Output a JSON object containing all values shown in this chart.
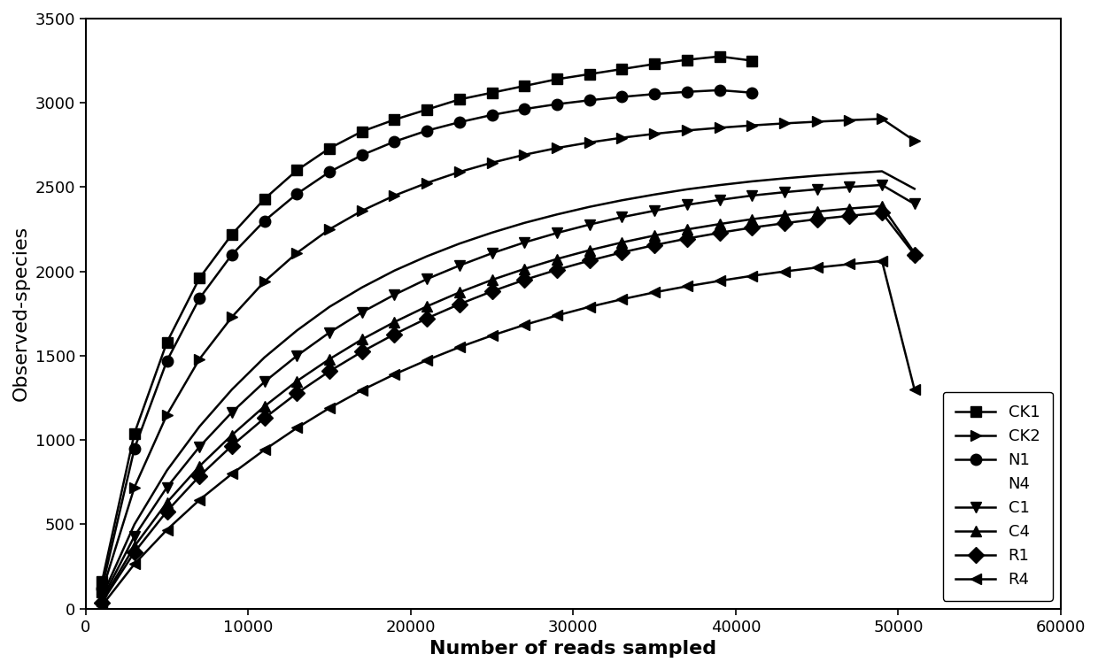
{
  "title": "",
  "xlabel": "Number of reads sampled",
  "ylabel": "Observed-species",
  "xlim": [
    0,
    60000
  ],
  "ylim": [
    0,
    3500
  ],
  "xticks": [
    0,
    10000,
    20000,
    30000,
    40000,
    50000,
    60000
  ],
  "yticks": [
    0,
    500,
    1000,
    1500,
    2000,
    2500,
    3000,
    3500
  ],
  "series": [
    {
      "name": "CK1",
      "marker": "s",
      "x": [
        1000,
        3000,
        5000,
        7000,
        9000,
        11000,
        13000,
        15000,
        17000,
        19000,
        21000,
        23000,
        25000,
        27000,
        29000,
        31000,
        33000,
        35000,
        37000,
        39000,
        41000
      ],
      "y": [
        160,
        1040,
        1580,
        1960,
        2220,
        2430,
        2600,
        2730,
        2830,
        2900,
        2960,
        3020,
        3060,
        3100,
        3140,
        3170,
        3200,
        3230,
        3255,
        3275,
        3250
      ]
    },
    {
      "name": "CK2",
      "marker": ">",
      "x": [
        1000,
        3000,
        5000,
        7000,
        9000,
        11000,
        13000,
        15000,
        17000,
        19000,
        21000,
        23000,
        25000,
        27000,
        29000,
        31000,
        33000,
        35000,
        37000,
        39000,
        41000,
        43000,
        45000,
        47000,
        49000,
        51000
      ],
      "y": [
        100,
        720,
        1150,
        1480,
        1730,
        1940,
        2110,
        2250,
        2360,
        2450,
        2525,
        2590,
        2645,
        2692,
        2732,
        2765,
        2793,
        2816,
        2836,
        2852,
        2866,
        2878,
        2888,
        2897,
        2905,
        2775
      ]
    },
    {
      "name": "N1",
      "marker": "o",
      "x": [
        1000,
        3000,
        5000,
        7000,
        9000,
        11000,
        13000,
        15000,
        17000,
        19000,
        21000,
        23000,
        25000,
        27000,
        29000,
        31000,
        33000,
        35000,
        37000,
        39000,
        41000
      ],
      "y": [
        120,
        950,
        1470,
        1840,
        2100,
        2300,
        2460,
        2590,
        2690,
        2770,
        2835,
        2885,
        2928,
        2963,
        2992,
        3015,
        3035,
        3052,
        3065,
        3075,
        3060
      ]
    },
    {
      "name": "N4",
      "marker": "None",
      "x": [
        1000,
        3000,
        5000,
        7000,
        9000,
        11000,
        13000,
        15000,
        17000,
        19000,
        21000,
        23000,
        25000,
        27000,
        29000,
        31000,
        33000,
        35000,
        37000,
        39000,
        41000,
        43000,
        45000,
        47000,
        49000,
        51000
      ],
      "y": [
        70,
        500,
        820,
        1080,
        1300,
        1490,
        1650,
        1790,
        1905,
        2005,
        2090,
        2165,
        2230,
        2288,
        2338,
        2383,
        2422,
        2456,
        2487,
        2512,
        2534,
        2552,
        2568,
        2582,
        2594,
        2490
      ]
    },
    {
      "name": "C1",
      "marker": "v",
      "x": [
        1000,
        3000,
        5000,
        7000,
        9000,
        11000,
        13000,
        15000,
        17000,
        19000,
        21000,
        23000,
        25000,
        27000,
        29000,
        31000,
        33000,
        35000,
        37000,
        39000,
        41000,
        43000,
        45000,
        47000,
        49000,
        51000
      ],
      "y": [
        55,
        430,
        720,
        960,
        1165,
        1345,
        1500,
        1638,
        1758,
        1862,
        1955,
        2035,
        2108,
        2172,
        2228,
        2278,
        2322,
        2360,
        2395,
        2424,
        2450,
        2470,
        2487,
        2501,
        2513,
        2400
      ]
    },
    {
      "name": "C4",
      "marker": "^",
      "x": [
        1000,
        3000,
        5000,
        7000,
        9000,
        11000,
        13000,
        15000,
        17000,
        19000,
        21000,
        23000,
        25000,
        27000,
        29000,
        31000,
        33000,
        35000,
        37000,
        39000,
        41000,
        43000,
        45000,
        47000,
        49000,
        51000
      ],
      "y": [
        45,
        370,
        630,
        845,
        1030,
        1200,
        1350,
        1480,
        1597,
        1700,
        1793,
        1876,
        1950,
        2015,
        2074,
        2126,
        2172,
        2213,
        2249,
        2281,
        2310,
        2334,
        2355,
        2373,
        2388,
        2110
      ]
    },
    {
      "name": "R1",
      "marker": "D",
      "x": [
        1000,
        3000,
        5000,
        7000,
        9000,
        11000,
        13000,
        15000,
        17000,
        19000,
        21000,
        23000,
        25000,
        27000,
        29000,
        31000,
        33000,
        35000,
        37000,
        39000,
        41000,
        43000,
        45000,
        47000,
        49000,
        51000
      ],
      "y": [
        38,
        335,
        578,
        786,
        967,
        1130,
        1278,
        1408,
        1524,
        1628,
        1722,
        1806,
        1882,
        1950,
        2010,
        2064,
        2113,
        2156,
        2195,
        2229,
        2260,
        2286,
        2310,
        2330,
        2348,
        2100
      ]
    },
    {
      "name": "R4",
      "marker": "<",
      "x": [
        1000,
        3000,
        5000,
        7000,
        9000,
        11000,
        13000,
        15000,
        17000,
        19000,
        21000,
        23000,
        25000,
        27000,
        29000,
        31000,
        33000,
        35000,
        37000,
        39000,
        41000,
        43000,
        45000,
        47000,
        49000,
        51000
      ],
      "y": [
        18,
        265,
        468,
        645,
        800,
        942,
        1072,
        1190,
        1296,
        1390,
        1474,
        1551,
        1620,
        1683,
        1739,
        1790,
        1835,
        1876,
        1912,
        1944,
        1974,
        2000,
        2023,
        2043,
        2062,
        1300
      ]
    }
  ],
  "line_color": "#000000",
  "marker_size": 9,
  "line_width": 1.8,
  "legend_fontsize": 13,
  "axis_label_fontsize": 16,
  "tick_fontsize": 13,
  "legend_order": [
    "CK1",
    "CK2",
    "N1",
    "N4",
    "C1",
    "C4",
    "R1",
    "R4"
  ]
}
